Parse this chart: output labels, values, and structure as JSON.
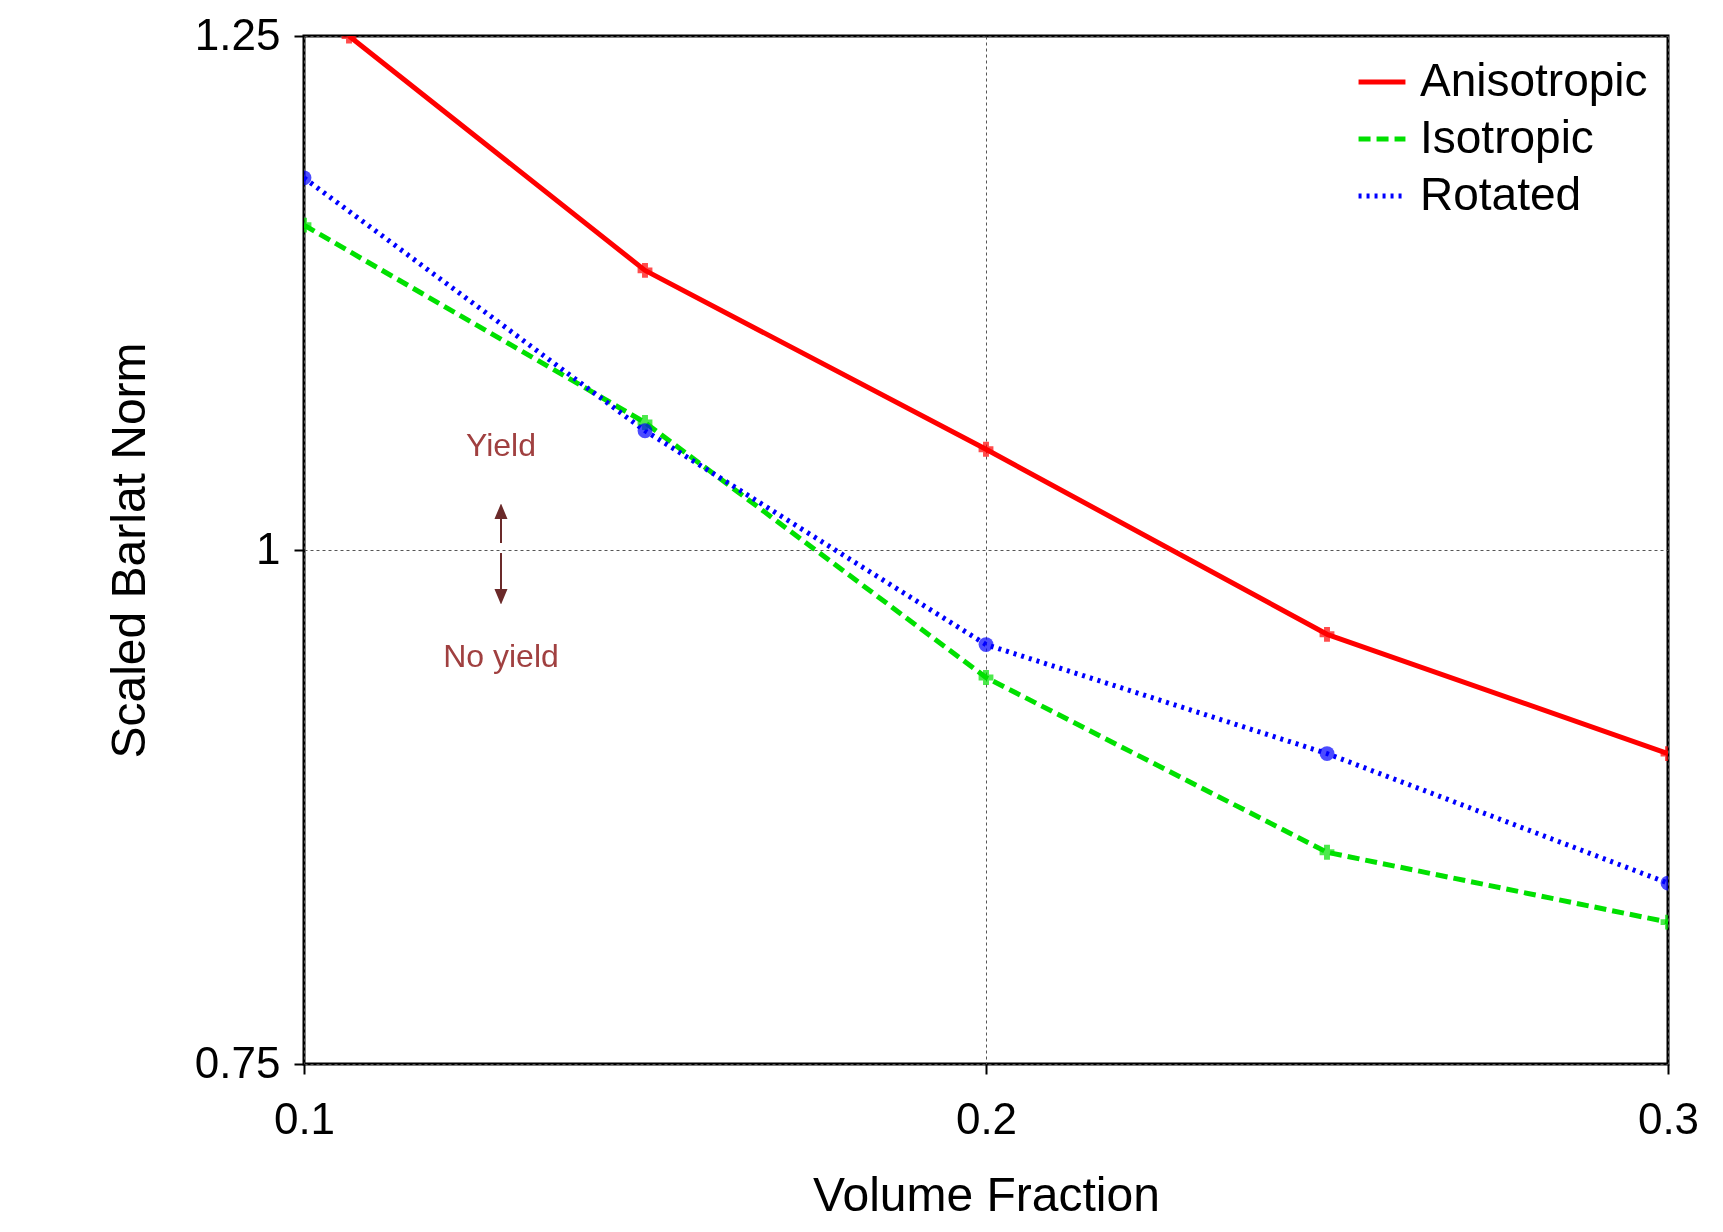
{
  "chart_data": {
    "type": "line",
    "xlabel": "Volume Fraction",
    "ylabel": "Scaled Barlat Norm",
    "x": [
      0.1,
      0.15,
      0.2,
      0.25,
      0.3
    ],
    "xlim": [
      0.1,
      0.3
    ],
    "xticks": [
      0.1,
      0.2,
      0.3
    ],
    "ylim": [
      0.75,
      1.25
    ],
    "yticks": [
      0.75,
      1,
      1.25
    ],
    "grid": true,
    "legend": "top right",
    "series": [
      {
        "name": "Anisotropic",
        "color": "#ff0000",
        "line_style": "solid",
        "marker": "cross",
        "x": [
          0.1066,
          0.15,
          0.2,
          0.25,
          0.3
        ],
        "values": [
          1.25,
          1.136,
          1.049,
          0.959,
          0.901
        ]
      },
      {
        "name": "Isotropic",
        "color": "#00e000",
        "line_style": "dashed",
        "marker": "cross",
        "values": [
          1.158,
          1.062,
          0.938,
          0.853,
          0.819
        ]
      },
      {
        "name": "Rotated",
        "color": "#0000ff",
        "line_style": "dotted",
        "marker": "circle",
        "values": [
          1.181,
          1.058,
          0.954,
          0.901,
          0.838
        ]
      }
    ],
    "annotations": [
      "Yield",
      "No yield"
    ]
  }
}
